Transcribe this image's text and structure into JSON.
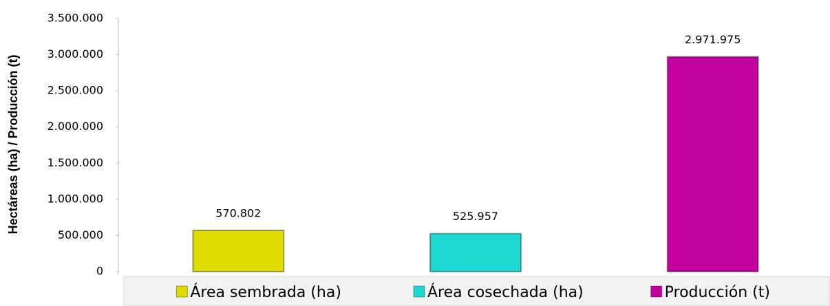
{
  "chart_data": {
    "type": "bar",
    "y_label": "Hectáreas (ha) / Producción (t)",
    "categories": [
      "Área sembrada (ha)",
      "Área cosechada (ha)",
      "Producción (t)"
    ],
    "values": [
      570802,
      525957,
      2971975
    ],
    "value_labels": [
      "570.802",
      "525.957",
      "2.971.975"
    ],
    "colors": [
      "#e0dc00",
      "#1ed8d2",
      "#c2009e"
    ],
    "ylim": [
      0,
      3500000
    ],
    "yticks": [
      0,
      {
        "value": 500000,
        "label": "500.000"
      },
      {
        "value": 1000000,
        "label": "1.000.000"
      },
      {
        "value": 1500000,
        "label": "1.500.000"
      },
      {
        "value": 2000000,
        "label": "2.000.000"
      },
      {
        "value": 2500000,
        "label": "2.500.000"
      },
      {
        "value": 3000000,
        "label": "3.000.000"
      },
      {
        "value": 3500000,
        "label": "3.500.000"
      }
    ],
    "grid": false,
    "legend": "bottom"
  }
}
